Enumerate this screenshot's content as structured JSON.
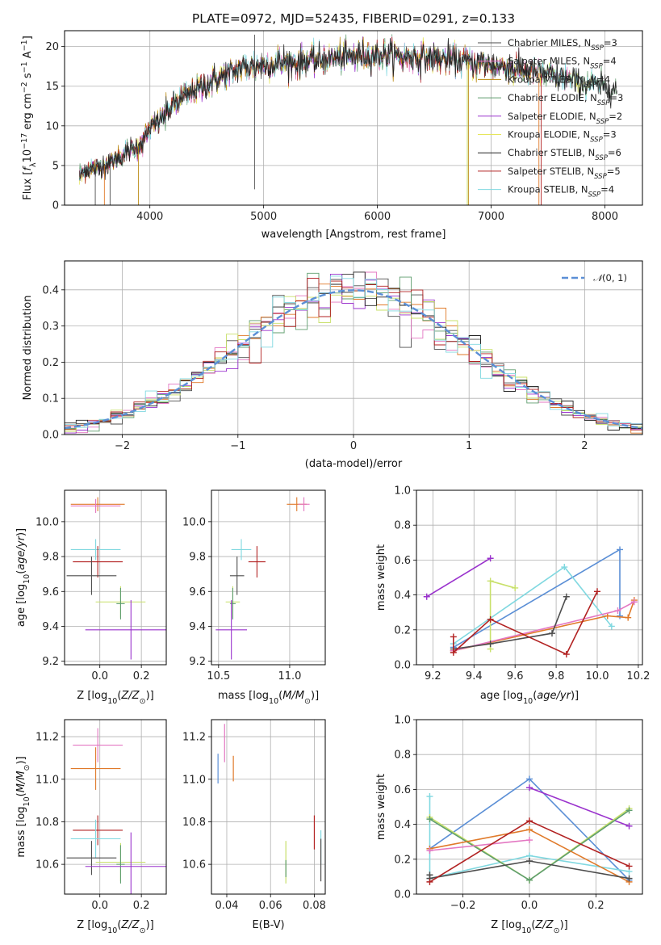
{
  "chart_data": [
    {
      "panel": "spectrum",
      "type": "line",
      "title": "PLATE=0972, MJD=52435, FIBERID=0291, z=0.133",
      "xlabel": "wavelength [Angstrom, rest frame]",
      "ylabel": "Flux [fλ10⁻¹⁷ erg cm⁻² s⁻¹ A⁻¹]",
      "xlim": [
        3250,
        8330
      ],
      "ylim": [
        0,
        22
      ],
      "xticks": [
        4000,
        5000,
        6000,
        7000,
        8000
      ],
      "yticks": [
        0,
        5,
        10,
        15,
        20
      ],
      "spectrum_trend": {
        "wavelength": [
          3380,
          3450,
          3600,
          3700,
          3900,
          4000,
          4200,
          4400,
          4600,
          4800,
          5000,
          5200,
          5500,
          5800,
          6000,
          6300,
          6600,
          7000,
          7400,
          7800,
          8100
        ],
        "flux": [
          3.8,
          4.5,
          5.0,
          5.8,
          7.5,
          9.5,
          12.5,
          14.6,
          16.0,
          17.3,
          17.6,
          18.0,
          18.3,
          18.8,
          18.9,
          18.7,
          18.4,
          17.7,
          16.7,
          15.4,
          14.6
        ]
      },
      "series": [
        {
          "name": "Chabrier MILES, N",
          "sub": "SSP",
          "tail": "=3",
          "color": "#4d4d4d"
        },
        {
          "name": "Salpeter MILES, N",
          "sub": "SSP",
          "tail": "=4",
          "color": "#e377c2"
        },
        {
          "name": "Kroupa MILES, N",
          "sub": "SSP",
          "tail": "=4",
          "color": "#b8860b"
        },
        {
          "name": "Chabrier ELODIE, N",
          "sub": "SSP",
          "tail": "=3",
          "color": "#5f9e6e"
        },
        {
          "name": "Salpeter ELODIE, N",
          "sub": "SSP",
          "tail": "=2",
          "color": "#9a32cd"
        },
        {
          "name": "Kroupa ELODIE, N",
          "sub": "SSP",
          "tail": "=3",
          "color": "#e6e65c"
        },
        {
          "name": "Chabrier STELIB, N",
          "sub": "SSP",
          "tail": "=6",
          "color": "#222222"
        },
        {
          "name": "Salpeter STELIB, N",
          "sub": "SSP",
          "tail": "=5",
          "color": "#b22222"
        },
        {
          "name": "Kroupa STELIB, N",
          "sub": "SSP",
          "tail": "=4",
          "color": "#80d8e0"
        }
      ]
    },
    {
      "panel": "residuals",
      "type": "histogram",
      "xlabel": "(data-model)/error",
      "ylabel": "Normed distribution",
      "xlim": [
        -2.5,
        2.5
      ],
      "ylim": [
        0,
        0.48
      ],
      "xticks": [
        -2,
        -1,
        0,
        1,
        2
      ],
      "yticks": [
        0.0,
        0.1,
        0.2,
        0.3,
        0.4
      ],
      "legend": "N(0, 1)",
      "legend_position": "upper right",
      "normal_curve": {
        "mean": 0,
        "sigma": 1,
        "color": "#5b8fd6"
      },
      "bin_width": 0.1,
      "hist_colors": [
        "#4d4d4d",
        "#e377c2",
        "#e07a2a",
        "#5f9e6e",
        "#9a32cd",
        "#c8e06a",
        "#222222",
        "#b22222",
        "#80d8e0"
      ]
    },
    {
      "panel": "age-vs-Z",
      "type": "errorbar",
      "xlabel": "Z [log10(Z/Z⊙)]",
      "ylabel": "age  [log10(age/yr)]",
      "xlim": [
        -0.17,
        0.32
      ],
      "ylim": [
        9.18,
        10.18
      ],
      "xticks": [
        0.0,
        0.2
      ],
      "yticks": [
        9.2,
        9.4,
        9.6,
        9.8,
        10.0
      ],
      "points": [
        {
          "x": -0.01,
          "y": 10.1,
          "xerr": 0.13,
          "yerr": 0.04,
          "color": "#e07a2a"
        },
        {
          "x": -0.02,
          "y": 10.09,
          "xerr": 0.12,
          "yerr": 0.04,
          "color": "#e377c2"
        },
        {
          "x": -0.02,
          "y": 9.84,
          "xerr": 0.12,
          "yerr": 0.06,
          "color": "#80d8e0"
        },
        {
          "x": -0.01,
          "y": 9.77,
          "xerr": 0.12,
          "yerr": 0.09,
          "color": "#b22222"
        },
        {
          "x": -0.04,
          "y": 9.69,
          "xerr": 0.12,
          "yerr": 0.11,
          "color": "#4d4d4d"
        },
        {
          "x": 0.1,
          "y": 9.54,
          "xerr": 0.12,
          "yerr": 0.09,
          "color": "#c8e06a"
        },
        {
          "x": 0.1,
          "y": 9.53,
          "xerr": 0.02,
          "yerr": 0.09,
          "color": "#5f9e6e"
        },
        {
          "x": 0.15,
          "y": 9.38,
          "xerr": 0.22,
          "yerr": 0.17,
          "color": "#9a32cd"
        }
      ]
    },
    {
      "panel": "age-vs-mass",
      "type": "errorbar",
      "xlabel": "mass [log10(M/M⊙)]",
      "ylabel": "",
      "xlim": [
        10.45,
        11.25
      ],
      "ylim": [
        9.18,
        10.18
      ],
      "xticks": [
        10.5,
        11.0
      ],
      "yticks": [
        9.2,
        9.4,
        9.6,
        9.8,
        10.0
      ],
      "points": [
        {
          "x": 11.05,
          "y": 10.1,
          "xerr": 0.07,
          "yerr": 0.04,
          "color": "#e07a2a"
        },
        {
          "x": 11.1,
          "y": 10.1,
          "xerr": 0.04,
          "yerr": 0.04,
          "color": "#e377c2"
        },
        {
          "x": 10.66,
          "y": 9.84,
          "xerr": 0.07,
          "yerr": 0.06,
          "color": "#80d8e0"
        },
        {
          "x": 10.77,
          "y": 9.77,
          "xerr": 0.06,
          "yerr": 0.09,
          "color": "#b22222"
        },
        {
          "x": 10.63,
          "y": 9.69,
          "xerr": 0.05,
          "yerr": 0.11,
          "color": "#4d4d4d"
        },
        {
          "x": 10.6,
          "y": 9.54,
          "xerr": 0.05,
          "yerr": 0.09,
          "color": "#c8e06a"
        },
        {
          "x": 10.6,
          "y": 9.53,
          "xerr": 0.02,
          "yerr": 0.09,
          "color": "#5f9e6e"
        },
        {
          "x": 10.59,
          "y": 9.38,
          "xerr": 0.11,
          "yerr": 0.17,
          "color": "#9a32cd"
        }
      ]
    },
    {
      "panel": "weight-vs-age",
      "type": "line",
      "xlabel": "age  [log10(age/yr)]",
      "ylabel": "mass weight",
      "xlim": [
        9.12,
        10.22
      ],
      "ylim": [
        0,
        1
      ],
      "xticks": [
        9.2,
        9.4,
        9.6,
        9.8,
        10.0,
        10.2
      ],
      "yticks": [
        0.0,
        0.2,
        0.4,
        0.6,
        0.8,
        1.0
      ],
      "series": [
        {
          "color": "#5b8fd6",
          "x": [
            9.3,
            10.11,
            10.11
          ],
          "y": [
            0.1,
            0.66,
            0.28
          ]
        },
        {
          "color": "#9a32cd",
          "x": [
            9.17,
            9.48
          ],
          "y": [
            0.39,
            0.61
          ]
        },
        {
          "color": "#80d8e0",
          "x": [
            9.3,
            9.84,
            10.07
          ],
          "y": [
            0.12,
            0.56,
            0.22
          ]
        },
        {
          "color": "#c8e06a",
          "x": [
            9.48,
            9.48,
            9.6
          ],
          "y": [
            0.09,
            0.48,
            0.44
          ]
        },
        {
          "color": "#e07a2a",
          "x": [
            9.3,
            10.05,
            10.15,
            10.18
          ],
          "y": [
            0.08,
            0.28,
            0.27,
            0.37
          ]
        },
        {
          "color": "#e377c2",
          "x": [
            9.3,
            10.1,
            10.18
          ],
          "y": [
            0.08,
            0.31,
            0.36
          ]
        },
        {
          "color": "#4d4d4d",
          "x": [
            9.3,
            9.48,
            9.78,
            9.85
          ],
          "y": [
            0.09,
            0.12,
            0.18,
            0.39
          ]
        },
        {
          "color": "#b22222",
          "x": [
            9.3,
            9.3,
            9.48,
            9.85,
            10.0
          ],
          "y": [
            0.16,
            0.07,
            0.26,
            0.06,
            0.42
          ]
        }
      ]
    },
    {
      "panel": "mass-vs-Z",
      "type": "errorbar",
      "xlabel": "Z [log10(Z/Z⊙)]",
      "ylabel": "mass [log10(M/M⊙)]",
      "xlim": [
        -0.17,
        0.32
      ],
      "ylim": [
        10.46,
        11.28
      ],
      "xticks": [
        0.0,
        0.2
      ],
      "yticks": [
        10.6,
        10.8,
        11.0,
        11.2
      ],
      "points": [
        {
          "x": -0.01,
          "y": 11.16,
          "xerr": 0.12,
          "yerr": 0.08,
          "color": "#e377c2"
        },
        {
          "x": -0.02,
          "y": 11.05,
          "xerr": 0.12,
          "yerr": 0.1,
          "color": "#e07a2a"
        },
        {
          "x": -0.01,
          "y": 10.76,
          "xerr": 0.12,
          "yerr": 0.07,
          "color": "#b22222"
        },
        {
          "x": -0.02,
          "y": 10.72,
          "xerr": 0.12,
          "yerr": 0.09,
          "color": "#80d8e0"
        },
        {
          "x": -0.04,
          "y": 10.63,
          "xerr": 0.12,
          "yerr": 0.08,
          "color": "#4d4d4d"
        },
        {
          "x": 0.1,
          "y": 10.61,
          "xerr": 0.12,
          "yerr": 0.09,
          "color": "#c8e06a"
        },
        {
          "x": 0.1,
          "y": 10.6,
          "xerr": 0.02,
          "yerr": 0.09,
          "color": "#5f9e6e"
        },
        {
          "x": 0.15,
          "y": 10.59,
          "xerr": 0.22,
          "yerr": 0.16,
          "color": "#9a32cd"
        }
      ]
    },
    {
      "panel": "mass-vs-EBV",
      "type": "errorbar",
      "xlabel": "E(B-V)",
      "ylabel": "",
      "xlim": [
        0.033,
        0.085
      ],
      "ylim": [
        10.46,
        11.28
      ],
      "xticks": [
        0.04,
        0.06,
        0.08
      ],
      "yticks": [
        10.6,
        10.8,
        11.0,
        11.2
      ],
      "points": [
        {
          "x": 0.036,
          "y": 11.05,
          "yerr": 0.07,
          "color": "#5b8fd6"
        },
        {
          "x": 0.039,
          "y": 11.17,
          "yerr": 0.09,
          "color": "#e377c2"
        },
        {
          "x": 0.043,
          "y": 11.05,
          "yerr": 0.06,
          "color": "#e07a2a"
        },
        {
          "x": 0.067,
          "y": 10.61,
          "yerr": 0.1,
          "color": "#c8e06a"
        },
        {
          "x": 0.067,
          "y": 10.58,
          "yerr": 0.04,
          "color": "#5f9e6e"
        },
        {
          "x": 0.08,
          "y": 10.75,
          "yerr": 0.08,
          "color": "#b22222"
        },
        {
          "x": 0.083,
          "y": 10.68,
          "yerr": 0.08,
          "color": "#80d8e0"
        },
        {
          "x": 0.083,
          "y": 10.62,
          "yerr": 0.1,
          "color": "#4d4d4d"
        }
      ]
    },
    {
      "panel": "weight-vs-Z",
      "type": "line",
      "xlabel": "Z [log10(Z/Z⊙)]",
      "ylabel": "mass weight",
      "xlim": [
        -0.34,
        0.34
      ],
      "ylim": [
        0,
        1
      ],
      "xticks": [
        -0.2,
        0.0,
        0.2
      ],
      "yticks": [
        0.0,
        0.2,
        0.4,
        0.6,
        0.8,
        1.0
      ],
      "series": [
        {
          "color": "#5b8fd6",
          "x": [
            -0.3,
            0.0,
            0.3
          ],
          "y": [
            0.26,
            0.66,
            0.08
          ]
        },
        {
          "color": "#9a32cd",
          "x": [
            0.0,
            0.3
          ],
          "y": [
            0.61,
            0.39
          ]
        },
        {
          "color": "#80d8e0",
          "x": [
            -0.3,
            -0.3,
            0.0,
            0.3
          ],
          "y": [
            0.56,
            0.09,
            0.22,
            0.13
          ]
        },
        {
          "color": "#c8e06a",
          "x": [
            -0.3,
            0.0,
            0.3
          ],
          "y": [
            0.44,
            0.08,
            0.49
          ]
        },
        {
          "color": "#5f9e6e",
          "x": [
            -0.3,
            0.0,
            0.3
          ],
          "y": [
            0.43,
            0.08,
            0.48
          ]
        },
        {
          "color": "#e07a2a",
          "x": [
            -0.3,
            0.0,
            0.3
          ],
          "y": [
            0.26,
            0.37,
            0.07
          ]
        },
        {
          "color": "#e377c2",
          "x": [
            -0.3,
            0.0
          ],
          "y": [
            0.25,
            0.31
          ]
        },
        {
          "color": "#4d4d4d",
          "x": [
            -0.3,
            -0.3,
            0.0,
            0.3
          ],
          "y": [
            0.11,
            0.09,
            0.19,
            0.09
          ]
        },
        {
          "color": "#b22222",
          "x": [
            -0.3,
            0.0,
            0.3
          ],
          "y": [
            0.07,
            0.42,
            0.16
          ]
        }
      ]
    }
  ]
}
